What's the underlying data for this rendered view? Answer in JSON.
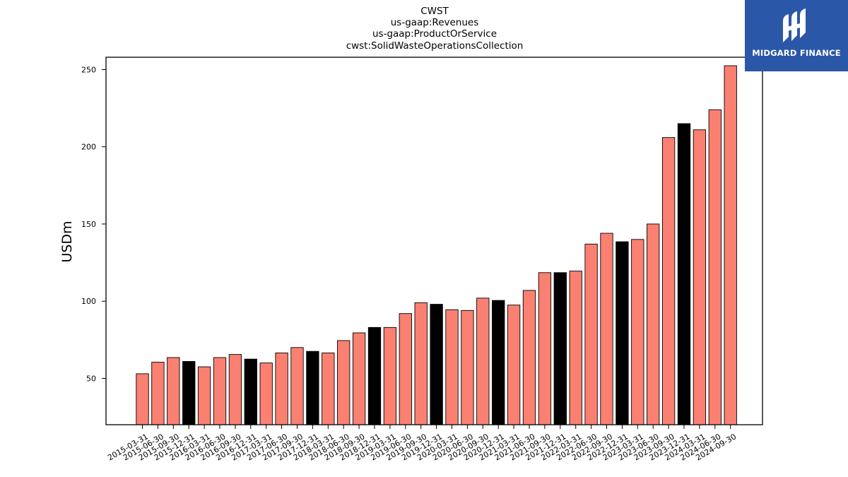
{
  "chart_data": {
    "type": "bar",
    "title_lines": [
      "CWST",
      "us-gaap:Revenues",
      "us-gaap:ProductOrService",
      "cwst:SolidWasteOperationsCollection"
    ],
    "xlabel": "",
    "ylabel": "USDm",
    "ylim": [
      20,
      258
    ],
    "yticks": [
      50,
      100,
      150,
      200,
      250
    ],
    "categories": [
      "2015-03-31",
      "2015-06-30",
      "2015-09-30",
      "2015-12-31",
      "2016-03-31",
      "2016-06-30",
      "2016-09-30",
      "2016-12-31",
      "2017-03-31",
      "2017-06-30",
      "2017-09-30",
      "2017-12-31",
      "2018-03-31",
      "2018-06-30",
      "2018-09-30",
      "2018-12-31",
      "2019-03-31",
      "2019-06-30",
      "2019-09-30",
      "2019-12-31",
      "2020-03-31",
      "2020-06-30",
      "2020-09-30",
      "2020-12-31",
      "2021-03-31",
      "2021-06-30",
      "2021-09-30",
      "2021-12-31",
      "2022-03-31",
      "2022-06-30",
      "2022-09-30",
      "2022-12-31",
      "2023-03-31",
      "2023-06-30",
      "2023-09-30",
      "2023-12-31",
      "2024-03-31",
      "2024-06-30",
      "2024-09-30"
    ],
    "values": [
      53,
      60.5,
      63.5,
      61,
      57.5,
      63.5,
      65.5,
      62.5,
      60,
      66.5,
      70,
      67.5,
      66.5,
      74.5,
      79.5,
      83,
      83,
      92,
      99,
      98,
      94.5,
      94,
      102,
      100.5,
      97.5,
      107,
      118.5,
      118.5,
      119.5,
      137,
      144,
      138.5,
      140,
      150,
      206,
      215,
      211,
      224,
      252.5
    ],
    "highlight": [
      false,
      false,
      false,
      true,
      false,
      false,
      false,
      true,
      false,
      false,
      false,
      true,
      false,
      false,
      false,
      true,
      false,
      false,
      false,
      true,
      false,
      false,
      false,
      true,
      false,
      false,
      false,
      true,
      false,
      false,
      false,
      true,
      false,
      false,
      false,
      true,
      false,
      false,
      false
    ],
    "colors": {
      "bar": "#fa8072",
      "highlight": "#000000",
      "edge": "#000000"
    },
    "grid": false,
    "legend": "none"
  },
  "logo": {
    "text": "MIDGARD FINANCE",
    "background": "#2b57a8",
    "color": "#ffffff"
  }
}
